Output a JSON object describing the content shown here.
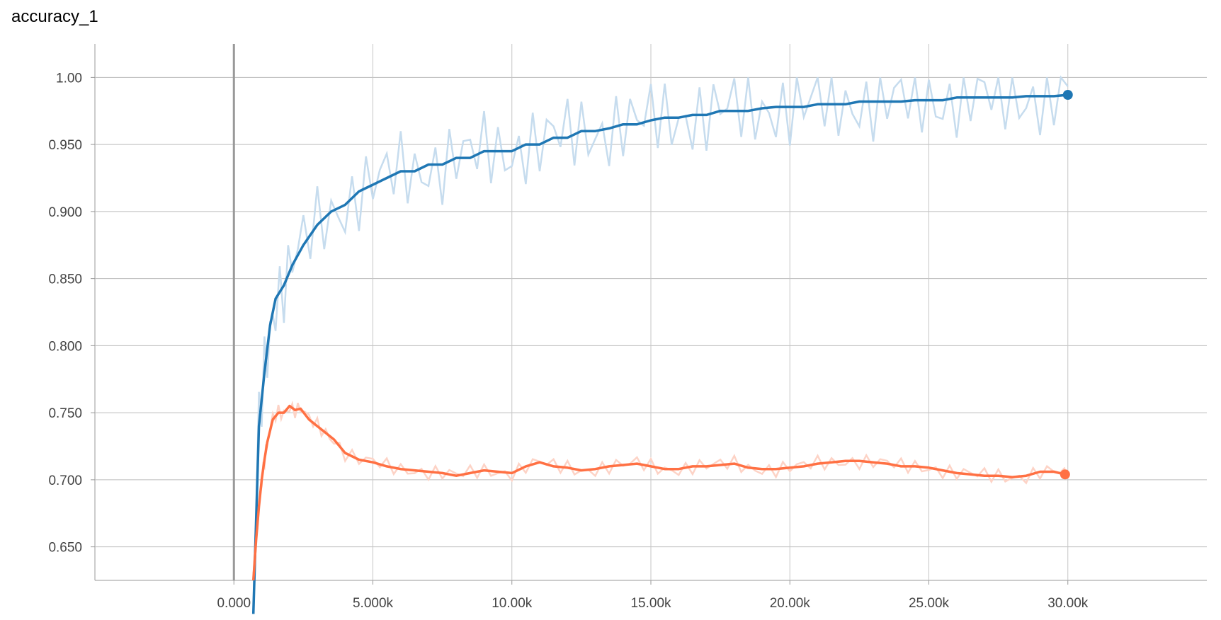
{
  "chart_data": {
    "type": "line",
    "title": "accuracy_1",
    "xlabel": "",
    "ylabel": "",
    "xlim": [
      -5000,
      35000
    ],
    "ylim": [
      0.625,
      1.025
    ],
    "x_ticks": [
      {
        "value": 0,
        "label": "0.000"
      },
      {
        "value": 5000,
        "label": "5.000k"
      },
      {
        "value": 10000,
        "label": "10.00k"
      },
      {
        "value": 15000,
        "label": "15.00k"
      },
      {
        "value": 20000,
        "label": "20.00k"
      },
      {
        "value": 25000,
        "label": "25.00k"
      },
      {
        "value": 30000,
        "label": "30.00k"
      }
    ],
    "y_ticks": [
      {
        "value": 0.65,
        "label": "0.650"
      },
      {
        "value": 0.7,
        "label": "0.700"
      },
      {
        "value": 0.75,
        "label": "0.750"
      },
      {
        "value": 0.8,
        "label": "0.800"
      },
      {
        "value": 0.85,
        "label": "0.850"
      },
      {
        "value": 0.9,
        "label": "0.900"
      },
      {
        "value": 0.95,
        "label": "0.950"
      },
      {
        "value": 1.0,
        "label": "1.00"
      }
    ],
    "grid": true,
    "series": [
      {
        "color": "#1f77b4",
        "raw_color": "#c6dcee",
        "x": [
          700,
          900,
          1100,
          1300,
          1500,
          1800,
          2100,
          2500,
          3000,
          3500,
          4000,
          4500,
          5000,
          5500,
          6000,
          6500,
          7000,
          7500,
          8000,
          8500,
          9000,
          9500,
          10000,
          10500,
          11000,
          11500,
          12000,
          12500,
          13000,
          13500,
          14000,
          14500,
          15000,
          15500,
          16000,
          16500,
          17000,
          17500,
          18000,
          18500,
          19000,
          19500,
          20000,
          20500,
          21000,
          21500,
          22000,
          22500,
          23000,
          23500,
          24000,
          24500,
          25000,
          25500,
          26000,
          26500,
          27000,
          27500,
          28000,
          28500,
          29000,
          29500,
          30000
        ],
        "y": [
          0.6,
          0.74,
          0.78,
          0.815,
          0.835,
          0.845,
          0.86,
          0.875,
          0.89,
          0.9,
          0.905,
          0.915,
          0.92,
          0.925,
          0.93,
          0.93,
          0.935,
          0.935,
          0.94,
          0.94,
          0.945,
          0.945,
          0.945,
          0.95,
          0.95,
          0.955,
          0.955,
          0.96,
          0.96,
          0.962,
          0.965,
          0.965,
          0.968,
          0.97,
          0.97,
          0.972,
          0.972,
          0.975,
          0.975,
          0.975,
          0.977,
          0.978,
          0.978,
          0.978,
          0.98,
          0.98,
          0.98,
          0.982,
          0.982,
          0.982,
          0.982,
          0.983,
          0.983,
          0.983,
          0.985,
          0.985,
          0.985,
          0.985,
          0.985,
          0.986,
          0.986,
          0.986,
          0.987
        ]
      },
      {
        "color": "#ff7043",
        "raw_color": "#fdd3c6",
        "x": [
          700,
          800,
          900,
          1000,
          1100,
          1200,
          1400,
          1600,
          1800,
          2000,
          2200,
          2400,
          2700,
          3000,
          3300,
          3600,
          4000,
          4500,
          5000,
          5500,
          6000,
          6500,
          7000,
          7500,
          8000,
          8500,
          9000,
          9500,
          10000,
          10500,
          11000,
          11500,
          12000,
          12500,
          13000,
          13500,
          14000,
          14500,
          15000,
          15500,
          16000,
          16500,
          17000,
          17500,
          18000,
          18500,
          19000,
          19500,
          20000,
          20500,
          21000,
          21500,
          22000,
          22500,
          23000,
          23500,
          24000,
          24500,
          25000,
          25500,
          26000,
          26500,
          27000,
          27500,
          28000,
          28500,
          29000,
          29500,
          29900
        ],
        "y": [
          0.625,
          0.655,
          0.68,
          0.7,
          0.715,
          0.728,
          0.745,
          0.75,
          0.75,
          0.755,
          0.752,
          0.753,
          0.745,
          0.74,
          0.735,
          0.73,
          0.72,
          0.715,
          0.713,
          0.71,
          0.708,
          0.707,
          0.706,
          0.705,
          0.703,
          0.705,
          0.707,
          0.706,
          0.705,
          0.71,
          0.713,
          0.71,
          0.709,
          0.707,
          0.708,
          0.71,
          0.711,
          0.712,
          0.71,
          0.708,
          0.708,
          0.71,
          0.71,
          0.711,
          0.712,
          0.709,
          0.708,
          0.708,
          0.709,
          0.71,
          0.712,
          0.713,
          0.714,
          0.714,
          0.713,
          0.712,
          0.71,
          0.71,
          0.709,
          0.707,
          0.705,
          0.704,
          0.703,
          0.703,
          0.702,
          0.703,
          0.706,
          0.706,
          0.704
        ]
      }
    ]
  }
}
